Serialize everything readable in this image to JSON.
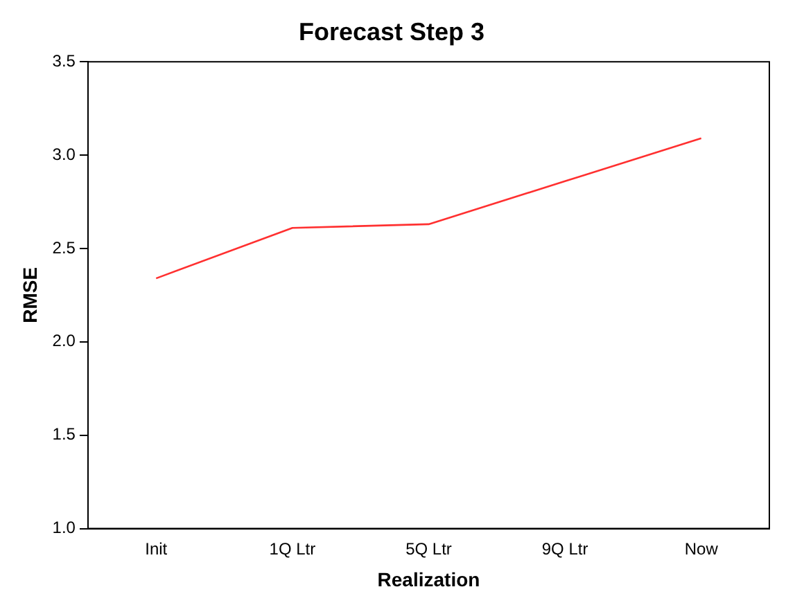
{
  "chart_data": {
    "type": "line",
    "title": "Forecast Step 3",
    "xlabel": "Realization",
    "ylabel": "RMSE",
    "categories": [
      "Init",
      "1Q Ltr",
      "5Q Ltr",
      "9Q Ltr",
      "Now"
    ],
    "series": [
      {
        "color": "#ff3030",
        "values": [
          2.34,
          2.61,
          2.63,
          2.86,
          3.09
        ]
      }
    ],
    "ylim": [
      1.0,
      3.5
    ],
    "yticks": [
      {
        "value": 1.0,
        "label": "1.0"
      },
      {
        "value": 1.5,
        "label": "1.5"
      },
      {
        "value": 2.0,
        "label": "2.0"
      },
      {
        "value": 2.5,
        "label": "2.5"
      },
      {
        "value": 3.0,
        "label": "3.0"
      },
      {
        "value": 3.5,
        "label": "3.5"
      }
    ],
    "grid": false,
    "legend": false,
    "marker": "none",
    "line_style": "solid"
  }
}
